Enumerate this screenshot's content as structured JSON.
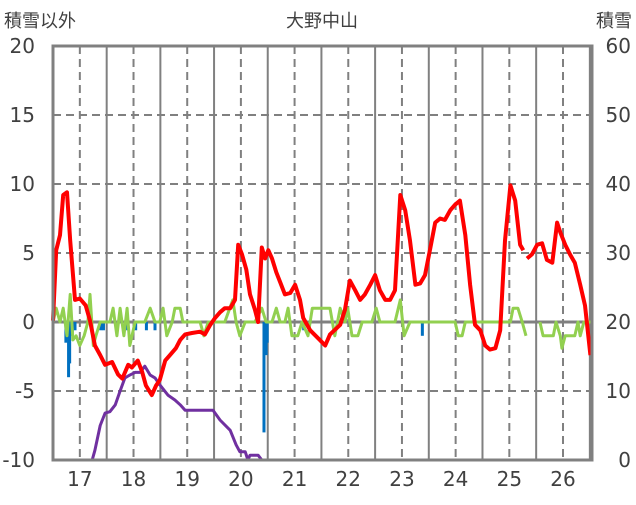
{
  "chart_data": {
    "type": "line",
    "title": "大野中山",
    "ylabel_left": "積雪以外",
    "ylabel_right": "積雪",
    "xlabel": "",
    "xlim": [
      16.5,
      26.54
    ],
    "ylim_left": [
      -10,
      20
    ],
    "ylim_right": [
      0,
      60
    ],
    "x_ticks": [
      17,
      18,
      19,
      20,
      21,
      22,
      23,
      24,
      25,
      26
    ],
    "x_tick_labels": [
      "17",
      "18",
      "19",
      "20",
      "21",
      "22",
      "23",
      "24",
      "25",
      "26"
    ],
    "y_ticks_left": [
      20,
      15,
      10,
      5,
      0,
      -5,
      -10
    ],
    "y_tick_labels_left": [
      "20",
      "15",
      "10",
      "5",
      "0",
      "-5",
      "-10"
    ],
    "y_ticks_right": [
      60,
      50,
      40,
      30,
      20,
      10,
      0
    ],
    "y_tick_labels_right": [
      "60",
      "50",
      "40",
      "30",
      "20",
      "10",
      "0"
    ],
    "grid": true,
    "colors": {
      "temperature": "#ff0000",
      "snow": "#7030a0",
      "wind": "#92d050",
      "precip": "#0070c0",
      "axis": "#808080"
    },
    "series": [
      {
        "name": "precip",
        "type": "bar",
        "axis": "left",
        "points": [
          [
            16.74,
            -1.5
          ],
          [
            16.79,
            -4.0
          ],
          [
            16.81,
            -3.0
          ],
          [
            16.86,
            -1.0
          ],
          [
            16.91,
            -0.6
          ],
          [
            17.39,
            -0.6
          ],
          [
            17.44,
            -0.6
          ],
          [
            17.89,
            -0.6
          ],
          [
            18.04,
            -0.6
          ],
          [
            18.24,
            -0.6
          ],
          [
            18.4,
            -0.6
          ],
          [
            20.43,
            -8.0
          ],
          [
            20.47,
            -2.4
          ],
          [
            20.49,
            -1.5
          ],
          [
            21.17,
            -0.6
          ],
          [
            23.38,
            -1.0
          ]
        ]
      },
      {
        "name": "wind",
        "type": "line",
        "axis": "left",
        "segments": [
          [
            [
              16.5,
              0
            ],
            [
              16.56,
              1
            ],
            [
              16.63,
              0
            ],
            [
              16.69,
              1
            ],
            [
              16.76,
              -1
            ],
            [
              16.82,
              2
            ],
            [
              16.87,
              -1.3
            ],
            [
              16.93,
              -1
            ],
            [
              17.0,
              -1.7
            ],
            [
              17.08,
              -1
            ],
            [
              17.15,
              0
            ],
            [
              17.19,
              2
            ],
            [
              17.25,
              -1.7
            ],
            [
              17.3,
              -1
            ],
            [
              17.38,
              0
            ],
            [
              17.47,
              0
            ],
            [
              17.56,
              0
            ],
            [
              17.62,
              1
            ],
            [
              17.69,
              -1
            ],
            [
              17.75,
              1
            ],
            [
              17.82,
              -1
            ],
            [
              17.88,
              1
            ],
            [
              17.93,
              -1.7
            ],
            [
              18.03,
              0
            ],
            [
              18.12,
              0
            ],
            [
              18.21,
              0
            ],
            [
              18.31,
              1
            ],
            [
              18.4,
              0
            ],
            [
              18.49,
              0
            ],
            [
              18.55,
              1
            ],
            [
              18.62,
              -1
            ],
            [
              18.72,
              0
            ],
            [
              18.77,
              1
            ],
            [
              18.87,
              1
            ],
            [
              18.92,
              0
            ],
            [
              19.24,
              0
            ],
            [
              19.31,
              -1
            ],
            [
              19.39,
              0
            ],
            [
              19.7,
              0
            ],
            [
              19.85,
              1.6
            ],
            [
              19.91,
              0
            ],
            [
              19.98,
              -1
            ],
            [
              20.08,
              0
            ],
            [
              20.26,
              0
            ],
            [
              20.39,
              1
            ],
            [
              20.47,
              0
            ],
            [
              20.58,
              0
            ],
            [
              20.66,
              1
            ],
            [
              20.73,
              0
            ],
            [
              20.82,
              0
            ],
            [
              20.88,
              1
            ],
            [
              20.95,
              -1
            ],
            [
              21.06,
              -1
            ],
            [
              21.14,
              0
            ],
            [
              21.25,
              -1
            ],
            [
              21.33,
              1
            ],
            [
              21.66,
              1
            ],
            [
              21.75,
              -1
            ],
            [
              21.85,
              1
            ],
            [
              21.94,
              0
            ],
            [
              21.99,
              1
            ],
            [
              22.07,
              -1
            ],
            [
              22.18,
              -1
            ],
            [
              22.26,
              0
            ],
            [
              22.44,
              0
            ],
            [
              22.52,
              1
            ],
            [
              22.59,
              0
            ],
            [
              22.87,
              0
            ],
            [
              22.97,
              1.6
            ],
            [
              23.04,
              -1
            ],
            [
              23.15,
              0
            ],
            [
              23.99,
              0
            ],
            [
              24.05,
              -1
            ],
            [
              24.12,
              -1
            ],
            [
              24.18,
              0
            ],
            [
              25.02,
              0
            ],
            [
              25.07,
              1
            ],
            [
              25.16,
              1
            ],
            [
              25.24,
              0
            ],
            [
              25.31,
              -1
            ]
          ],
          [
            [
              25.57,
              0
            ],
            [
              25.63,
              -1
            ],
            [
              25.82,
              -1
            ],
            [
              25.87,
              0
            ],
            [
              25.95,
              -1
            ],
            [
              25.98,
              -1.9
            ],
            [
              26.04,
              -1
            ],
            [
              26.22,
              -1
            ],
            [
              26.28,
              0
            ],
            [
              26.32,
              -1
            ],
            [
              26.39,
              0
            ],
            [
              26.54,
              0
            ]
          ]
        ]
      },
      {
        "name": "snow",
        "type": "line",
        "axis": "right",
        "segments": [
          [
            [
              16.5,
              0
            ],
            [
              17.23,
              0
            ],
            [
              17.28,
              1.4
            ],
            [
              17.38,
              5
            ],
            [
              17.47,
              6.8
            ],
            [
              17.56,
              7
            ],
            [
              17.66,
              8
            ],
            [
              17.75,
              10
            ],
            [
              17.84,
              11.9
            ],
            [
              17.93,
              12.3
            ],
            [
              18.03,
              12.7
            ],
            [
              18.12,
              12.7
            ],
            [
              18.21,
              13.6
            ],
            [
              18.31,
              12.3
            ],
            [
              18.4,
              11.9
            ],
            [
              18.49,
              10.9
            ],
            [
              18.64,
              9.4
            ],
            [
              18.77,
              8.7
            ],
            [
              18.87,
              8
            ],
            [
              18.96,
              7.2
            ],
            [
              19.05,
              7.2
            ],
            [
              19.48,
              7.2
            ],
            [
              19.61,
              5.8
            ],
            [
              19.8,
              4.3
            ],
            [
              19.91,
              2.2
            ],
            [
              19.98,
              1.2
            ],
            [
              20.08,
              1.2
            ],
            [
              20.13,
              0
            ],
            [
              20.17,
              0.7
            ],
            [
              20.32,
              0.7
            ],
            [
              20.39,
              0
            ],
            [
              26.54,
              0
            ]
          ]
        ]
      },
      {
        "name": "temperature",
        "type": "line",
        "axis": "left",
        "segments": [
          [
            [
              16.5,
              0.1
            ],
            [
              16.56,
              5.2
            ],
            [
              16.63,
              6.3
            ],
            [
              16.69,
              9.2
            ],
            [
              16.76,
              9.4
            ],
            [
              16.82,
              5.9
            ],
            [
              16.91,
              1.6
            ],
            [
              17.0,
              1.7
            ],
            [
              17.11,
              1.2
            ],
            [
              17.19,
              0.1
            ],
            [
              17.28,
              -1.7
            ],
            [
              17.38,
              -2.4
            ],
            [
              17.47,
              -3.1
            ],
            [
              17.6,
              -2.9
            ],
            [
              17.71,
              -3.8
            ],
            [
              17.79,
              -4.1
            ],
            [
              17.9,
              -3.1
            ],
            [
              17.97,
              -3.3
            ],
            [
              18.08,
              -2.8
            ],
            [
              18.16,
              -3.6
            ],
            [
              18.23,
              -4.6
            ],
            [
              18.34,
              -5.3
            ],
            [
              18.42,
              -4.6
            ],
            [
              18.49,
              -4.2
            ],
            [
              18.59,
              -2.8
            ],
            [
              18.68,
              -2.4
            ],
            [
              18.79,
              -1.9
            ],
            [
              18.87,
              -1.3
            ],
            [
              18.96,
              -0.9
            ],
            [
              19.09,
              -0.8
            ],
            [
              19.24,
              -0.7
            ],
            [
              19.33,
              -0.9
            ],
            [
              19.43,
              -0.2
            ],
            [
              19.52,
              0.3
            ],
            [
              19.61,
              0.7
            ],
            [
              19.7,
              1.0
            ],
            [
              19.8,
              1.0
            ],
            [
              19.89,
              1.6
            ],
            [
              19.95,
              5.6
            ],
            [
              20.02,
              4.9
            ],
            [
              20.1,
              3.8
            ],
            [
              20.17,
              2.0
            ],
            [
              20.26,
              0.9
            ],
            [
              20.32,
              0
            ],
            [
              20.39,
              5.4
            ],
            [
              20.45,
              4.6
            ],
            [
              20.51,
              5.2
            ],
            [
              20.58,
              4.6
            ],
            [
              20.66,
              3.6
            ],
            [
              20.73,
              2.9
            ],
            [
              20.82,
              2.0
            ],
            [
              20.92,
              2.1
            ],
            [
              21.01,
              2.7
            ],
            [
              21.1,
              1.6
            ],
            [
              21.16,
              0.3
            ],
            [
              21.29,
              -0.6
            ],
            [
              21.47,
              -1.3
            ],
            [
              21.57,
              -1.7
            ],
            [
              21.66,
              -0.9
            ],
            [
              21.85,
              -0.2
            ],
            [
              21.94,
              0.9
            ],
            [
              22.03,
              3.0
            ],
            [
              22.13,
              2.3
            ],
            [
              22.22,
              1.6
            ],
            [
              22.31,
              2.0
            ],
            [
              22.41,
              2.7
            ],
            [
              22.5,
              3.4
            ],
            [
              22.59,
              2.3
            ],
            [
              22.69,
              1.6
            ],
            [
              22.78,
              1.6
            ],
            [
              22.87,
              2.3
            ],
            [
              22.97,
              9.2
            ],
            [
              23.06,
              8.1
            ],
            [
              23.15,
              5.9
            ],
            [
              23.25,
              2.7
            ],
            [
              23.34,
              2.8
            ],
            [
              23.43,
              3.4
            ],
            [
              23.52,
              5.2
            ],
            [
              23.62,
              7.2
            ],
            [
              23.71,
              7.5
            ],
            [
              23.8,
              7.4
            ],
            [
              23.9,
              8.1
            ],
            [
              23.99,
              8.5
            ],
            [
              24.08,
              8.8
            ],
            [
              24.18,
              6.3
            ],
            [
              24.27,
              2.7
            ],
            [
              24.36,
              -0.2
            ],
            [
              24.46,
              -0.6
            ],
            [
              24.55,
              -1.7
            ],
            [
              24.64,
              -2.0
            ],
            [
              24.74,
              -1.9
            ],
            [
              24.83,
              -0.6
            ],
            [
              24.92,
              5.9
            ],
            [
              25.02,
              9.9
            ],
            [
              25.11,
              8.8
            ],
            [
              25.2,
              5.6
            ],
            [
              25.26,
              5.2
            ]
          ],
          [
            [
              25.33,
              4.6
            ],
            [
              25.42,
              4.9
            ],
            [
              25.52,
              5.6
            ],
            [
              25.61,
              5.7
            ],
            [
              25.7,
              4.5
            ],
            [
              25.8,
              4.3
            ],
            [
              25.89,
              7.2
            ],
            [
              25.95,
              6.5
            ],
            [
              26.04,
              5.6
            ],
            [
              26.13,
              4.9
            ],
            [
              26.22,
              4.3
            ],
            [
              26.32,
              2.7
            ],
            [
              26.41,
              1.2
            ],
            [
              26.51,
              -2.4
            ]
          ]
        ]
      }
    ]
  }
}
